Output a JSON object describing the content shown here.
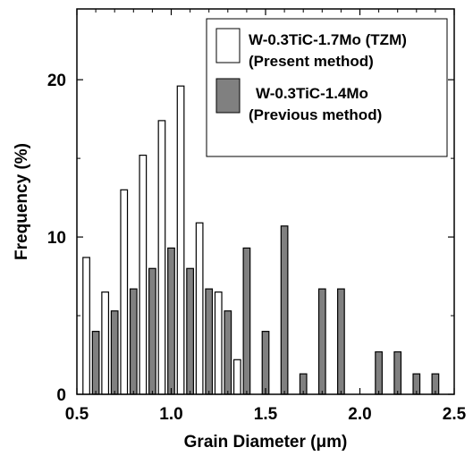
{
  "chart_data": {
    "type": "bar",
    "xlabel": "Grain Diameter (μm)",
    "ylabel": "Frequency (%)",
    "xlim": [
      0.5,
      2.5
    ],
    "ylim": [
      0,
      24.5
    ],
    "bar_width": 0.05,
    "x_ticks": [
      0.5,
      1.0,
      1.5,
      2.0,
      2.5
    ],
    "x_tick_labels": [
      "0.5",
      "1.0",
      "1.5",
      "2.0",
      "2.5"
    ],
    "y_ticks": [
      0,
      10,
      20
    ],
    "y_tick_labels": [
      "0",
      "10",
      "20"
    ],
    "grid": false,
    "legend_position": "top-right",
    "series": [
      {
        "name": "W-0.3TiC-1.7Mo (TZM)",
        "name_line2": "(Present method)",
        "color": "#ffffff",
        "points": [
          {
            "x": 0.55,
            "y": 8.7
          },
          {
            "x": 0.65,
            "y": 6.5
          },
          {
            "x": 0.75,
            "y": 13.0
          },
          {
            "x": 0.85,
            "y": 15.2
          },
          {
            "x": 0.95,
            "y": 17.4
          },
          {
            "x": 1.05,
            "y": 19.6
          },
          {
            "x": 1.15,
            "y": 10.9
          },
          {
            "x": 1.25,
            "y": 6.5
          },
          {
            "x": 1.35,
            "y": 2.2
          }
        ]
      },
      {
        "name": "W-0.3TiC-1.4Mo",
        "name_line2": "(Previous method)",
        "color": "#808080",
        "points": [
          {
            "x": 0.6,
            "y": 4.0
          },
          {
            "x": 0.7,
            "y": 5.3
          },
          {
            "x": 0.8,
            "y": 6.7
          },
          {
            "x": 0.9,
            "y": 8.0
          },
          {
            "x": 1.0,
            "y": 9.3
          },
          {
            "x": 1.1,
            "y": 8.0
          },
          {
            "x": 1.2,
            "y": 6.7
          },
          {
            "x": 1.3,
            "y": 5.3
          },
          {
            "x": 1.4,
            "y": 9.3
          },
          {
            "x": 1.5,
            "y": 4.0
          },
          {
            "x": 1.6,
            "y": 10.7
          },
          {
            "x": 1.7,
            "y": 1.3
          },
          {
            "x": 1.8,
            "y": 6.7
          },
          {
            "x": 1.9,
            "y": 6.7
          },
          {
            "x": 2.1,
            "y": 2.7
          },
          {
            "x": 2.2,
            "y": 2.7
          },
          {
            "x": 2.3,
            "y": 1.3
          },
          {
            "x": 2.4,
            "y": 1.3
          }
        ]
      }
    ]
  }
}
